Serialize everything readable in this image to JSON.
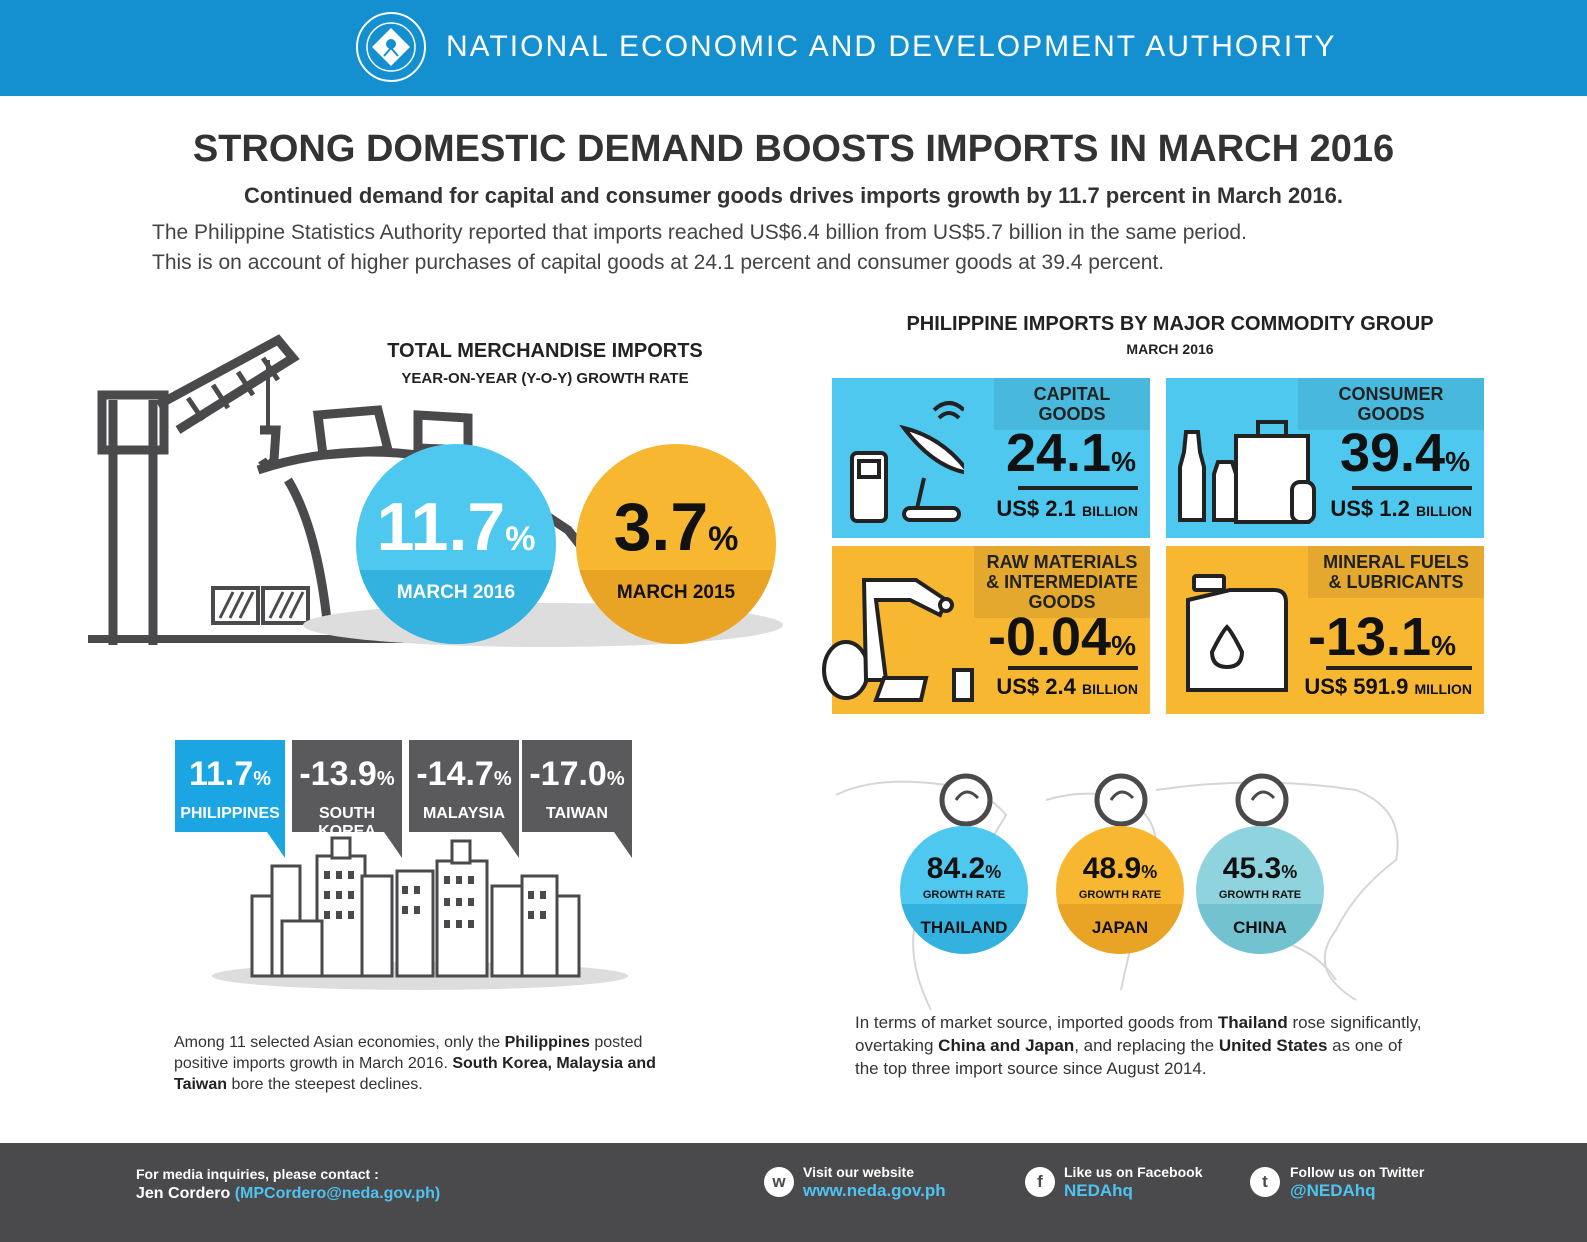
{
  "header": {
    "agency": "NATIONAL ECONOMIC AND DEVELOPMENT AUTHORITY"
  },
  "headline": {
    "title": "STRONG DOMESTIC DEMAND BOOSTS IMPORTS IN MARCH 2016",
    "subtitle": "Continued demand for capital and consumer goods drives imports growth by 11.7 percent in March 2016.",
    "intro_line1": "The Philippine Statistics Authority reported that imports reached US$6.4 billion from US$5.7 billion in the same period.",
    "intro_line2": "This is on account of higher purchases of capital goods at 24.1 percent and consumer goods at 39.4 percent."
  },
  "total_imports": {
    "title": "TOTAL MERCHANDISE IMPORTS",
    "subtitle": "YEAR-ON-YEAR (Y-O-Y) GROWTH RATE",
    "circles": [
      {
        "value": "11.7",
        "unit": "%",
        "label": "MARCH 2016",
        "color": "#4fc8f0",
        "band": "#33b2e0"
      },
      {
        "value": "3.7",
        "unit": "%",
        "label": "MARCH 2015",
        "color": "#f7b731",
        "band": "#e9a325"
      }
    ]
  },
  "commodity": {
    "title": "PHILIPPINE IMPORTS BY MAJOR COMMODITY GROUP",
    "subtitle": "MARCH 2016",
    "tiles": [
      {
        "label": "CAPITAL GOODS",
        "pct": "24.1",
        "unit": "%",
        "currency": "US$",
        "amount": "2.1",
        "scale": "BILLION",
        "color": "#4fc8f0",
        "icon": "satellite-dish-icon"
      },
      {
        "label": "CONSUMER GOODS",
        "pct": "39.4",
        "unit": "%",
        "currency": "US$",
        "amount": "1.2",
        "scale": "BILLION",
        "color": "#4fc8f0",
        "icon": "shopping-bag-icon"
      },
      {
        "label": "RAW MATERIALS & INTERMEDIATE GOODS",
        "pct": "-0.04",
        "unit": "%",
        "currency": "US$",
        "amount": "2.4",
        "scale": "BILLION",
        "color": "#f7b731",
        "icon": "robot-arm-icon"
      },
      {
        "label": "MINERAL FUELS & LUBRICANTS",
        "pct": "-13.1",
        "unit": "%",
        "currency": "US$",
        "amount": "591.9",
        "scale": "MILLION",
        "color": "#f7b731",
        "icon": "oil-jug-icon"
      }
    ]
  },
  "asia": {
    "tags": [
      {
        "value": "11.7",
        "unit": "%",
        "name": "PHILIPPINES",
        "color": "#1ba5e2"
      },
      {
        "value": "-13.9",
        "unit": "%",
        "name": "SOUTH KOREA",
        "color": "#5a5a5c"
      },
      {
        "value": "-14.7",
        "unit": "%",
        "name": "MALAYSIA",
        "color": "#5a5a5c"
      },
      {
        "value": "-17.0",
        "unit": "%",
        "name": "TAIWAN",
        "color": "#5a5a5c"
      }
    ],
    "text_parts": [
      "Among 11 selected Asian economies, only the ",
      "Philippines",
      " posted positive imports growth in March 2016. ",
      "South Korea, Malaysia and Taiwan",
      " bore the steepest declines."
    ]
  },
  "sources": {
    "circles": [
      {
        "value": "84.2",
        "unit": "%",
        "label": "GROWTH RATE",
        "name": "THAILAND",
        "color": "#4fc8f0",
        "band": "#33b2e0"
      },
      {
        "value": "48.9",
        "unit": "%",
        "label": "GROWTH RATE",
        "name": "JAPAN",
        "color": "#f7b731",
        "band": "#e9a325"
      },
      {
        "value": "45.3",
        "unit": "%",
        "label": "GROWTH RATE",
        "name": "CHINA",
        "color": "#8ed3dd",
        "band": "#72c3cf"
      }
    ],
    "text_parts": [
      "In terms of market source, imported goods from ",
      "Thailand",
      " rose significantly, overtaking ",
      "China and Japan",
      ", and replacing the ",
      "United States",
      " as one of the top three import source since August 2014."
    ]
  },
  "footer": {
    "contact_label": "For media inquiries, please contact :",
    "contact_name": "Jen Cordero",
    "contact_email": "(MPCordero@neda.gov.ph)",
    "website_label": "Visit our website",
    "website": "www.neda.gov.ph",
    "website_icon": "w",
    "facebook_label": "Like us on Facebook",
    "facebook": "NEDAhq",
    "facebook_icon": "f",
    "twitter_label": "Follow us on Twitter",
    "twitter": "@NEDAhq",
    "twitter_icon": "t"
  }
}
